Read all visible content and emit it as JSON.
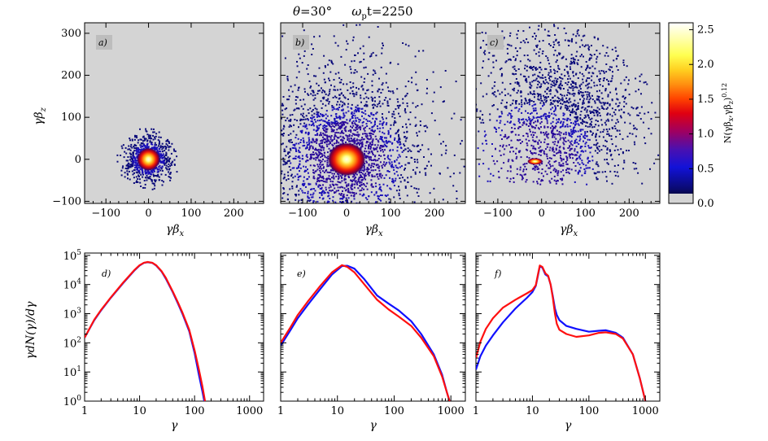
{
  "figure": {
    "title_theta": "θ=30°",
    "title_time": "ωpt=2250",
    "title_theta_sym": "θ",
    "title_theta_val": "=30°",
    "title_omega_sym": "ω",
    "title_omega_sub": "p",
    "title_time_val": "t=2250"
  },
  "colors": {
    "panel_bg": "#d4d4d4",
    "series_blue": "#1010ff",
    "series_red": "#ff1010",
    "scatter_dark": "#0b0b7a"
  },
  "chart_data": [
    {
      "id": "a",
      "type": "heatmap",
      "tag": "a)",
      "xlabel": "γβx",
      "ylabel": "γβz",
      "xlim": [
        -150,
        270
      ],
      "ylim": [
        -105,
        325
      ],
      "xticks": [
        -100,
        0,
        100,
        200
      ],
      "yticks": [
        -100,
        0,
        100,
        200,
        300
      ],
      "xtick_labels": [
        "−100",
        "0",
        "100",
        "200"
      ],
      "ytick_labels": [
        "−100",
        "0",
        "100",
        "200",
        "300"
      ],
      "core": {
        "x": 0,
        "z": 0,
        "sx": 17,
        "sz": 17
      },
      "halo": {
        "x": 0,
        "z": 0,
        "sx": 22,
        "sz": 22,
        "count": 900,
        "maxr": 75
      }
    },
    {
      "id": "b",
      "type": "heatmap",
      "tag": "b)",
      "xlabel": "γβx",
      "xlim": [
        -150,
        270
      ],
      "ylim": [
        -105,
        325
      ],
      "xticks": [
        -100,
        0,
        100,
        200
      ],
      "xtick_labels": [
        "−100",
        "0",
        "100",
        "200"
      ],
      "core": {
        "x": 0,
        "z": 0,
        "sx": 27,
        "sz": 25
      },
      "halo": {
        "x": -5,
        "z": 15,
        "sx": 75,
        "sz": 85,
        "count": 2600,
        "maxr": 330
      }
    },
    {
      "id": "c",
      "type": "heatmap",
      "tag": "c)",
      "xlabel": "γβx",
      "xlim": [
        -150,
        270
      ],
      "ylim": [
        -105,
        325
      ],
      "xticks": [
        -100,
        0,
        100,
        200
      ],
      "xtick_labels": [
        "−100",
        "0",
        "100",
        "200"
      ],
      "core": {
        "x": -15,
        "z": -5,
        "sx": 11,
        "sz": 5
      },
      "halo": {
        "x": 40,
        "z": 100,
        "sx": 80,
        "sz": 110,
        "count": 2200,
        "maxr": 330
      }
    },
    {
      "id": "colorbar",
      "type": "heatmap",
      "label": "N(γβx,γβz)0.12",
      "label_base": "N(γβ",
      "label_x": "x",
      "label_mid": ",γβ",
      "label_z": "z",
      "label_close": ")",
      "label_exp": "0.12",
      "range": [
        0.0,
        2.6
      ],
      "ticks": [
        0.0,
        0.5,
        1.0,
        1.5,
        2.0,
        2.5
      ],
      "tick_labels": [
        "0.0",
        "0.5",
        "1.0",
        "1.5",
        "2.0",
        "2.5"
      ]
    },
    {
      "id": "d",
      "type": "line",
      "tag": "d)",
      "xlabel": "γ",
      "ylabel": "γdN(γ)/dγ",
      "xscale": "log",
      "yscale": "log",
      "xlim": [
        1,
        1800
      ],
      "ylim": [
        1,
        120000
      ],
      "xticks": [
        1,
        10,
        100,
        1000
      ],
      "xtick_labels": [
        "1",
        "10",
        "100",
        "1000"
      ],
      "yticks": [
        1,
        10,
        100,
        1000,
        10000,
        100000
      ],
      "ytick_base": [
        "10",
        "10",
        "10",
        "10",
        "10",
        "10"
      ],
      "ytick_exp": [
        "0",
        "1",
        "2",
        "3",
        "4",
        "5"
      ],
      "series": [
        {
          "name": "blue",
          "x": [
            1,
            1.5,
            2,
            3,
            5,
            8,
            10,
            12,
            14,
            17,
            20,
            25,
            30,
            40,
            50,
            60,
            80,
            100,
            120,
            140,
            150
          ],
          "y": [
            150,
            600,
            1300,
            3500,
            11000,
            30000,
            45000,
            55000,
            58000,
            55000,
            45000,
            28000,
            16000,
            5500,
            2200,
            1000,
            250,
            45,
            8,
            2,
            1
          ]
        },
        {
          "name": "red",
          "x": [
            1,
            1.5,
            2,
            3,
            5,
            8,
            10,
            12,
            14,
            17,
            20,
            25,
            30,
            40,
            50,
            60,
            80,
            100,
            120,
            140,
            155
          ],
          "y": [
            150,
            620,
            1350,
            3600,
            11500,
            31000,
            46000,
            56000,
            59000,
            56000,
            46000,
            29000,
            17000,
            5800,
            2400,
            1100,
            280,
            55,
            12,
            3,
            1
          ]
        }
      ]
    },
    {
      "id": "e",
      "type": "line",
      "tag": "e)",
      "xlabel": "γ",
      "xscale": "log",
      "yscale": "log",
      "xlim": [
        1,
        1800
      ],
      "ylim": [
        1,
        120000
      ],
      "xticks": [
        1,
        10,
        100,
        1000
      ],
      "xtick_labels": [
        "1",
        "10",
        "100",
        "1000"
      ],
      "yticks": [
        1,
        10,
        100,
        1000,
        10000,
        100000
      ],
      "series": [
        {
          "name": "blue",
          "x": [
            1,
            1.5,
            2,
            3,
            5,
            8,
            12,
            15,
            20,
            30,
            50,
            80,
            120,
            200,
            300,
            500,
            700,
            850,
            950
          ],
          "y": [
            80,
            280,
            700,
            2000,
            7000,
            22000,
            43000,
            44000,
            35000,
            15000,
            4200,
            2200,
            1300,
            550,
            200,
            40,
            8,
            2,
            1
          ]
        },
        {
          "name": "red",
          "x": [
            1,
            1.5,
            2,
            3,
            5,
            8,
            12,
            15,
            20,
            30,
            50,
            80,
            120,
            200,
            300,
            500,
            700,
            850,
            950
          ],
          "y": [
            100,
            350,
            900,
            2600,
            9000,
            26000,
            46000,
            40000,
            26000,
            10000,
            3000,
            1400,
            800,
            380,
            150,
            35,
            7,
            2,
            1
          ]
        }
      ]
    },
    {
      "id": "f",
      "type": "line",
      "tag": "f)",
      "xlabel": "γ",
      "xscale": "log",
      "yscale": "log",
      "xlim": [
        1,
        1800
      ],
      "ylim": [
        1,
        120000
      ],
      "xticks": [
        1,
        10,
        100,
        1000
      ],
      "xtick_labels": [
        "1",
        "10",
        "100",
        "1000"
      ],
      "yticks": [
        1,
        10,
        100,
        1000,
        10000,
        100000
      ],
      "series": [
        {
          "name": "blue",
          "x": [
            1,
            1.2,
            1.5,
            2,
            3,
            5,
            8,
            10,
            11.5,
            12.5,
            13.5,
            15,
            17,
            19,
            21,
            23,
            25,
            27,
            30,
            40,
            60,
            100,
            150,
            200,
            300,
            400,
            600,
            800,
            1000
          ],
          "y": [
            12,
            35,
            80,
            180,
            500,
            1500,
            3500,
            5500,
            9000,
            20000,
            42000,
            38000,
            22000,
            19000,
            10000,
            4000,
            1500,
            900,
            600,
            380,
            300,
            240,
            260,
            270,
            220,
            150,
            40,
            6,
            1
          ]
        },
        {
          "name": "red",
          "x": [
            1,
            1.2,
            1.5,
            2,
            3,
            5,
            8,
            10,
            11.5,
            12.5,
            13.5,
            15,
            17,
            19,
            21,
            23,
            25,
            27,
            30,
            40,
            60,
            100,
            150,
            200,
            300,
            400,
            600,
            800,
            1000
          ],
          "y": [
            30,
            110,
            300,
            700,
            1600,
            3000,
            5000,
            6500,
            9500,
            22000,
            45000,
            40000,
            24000,
            20000,
            10000,
            3500,
            1000,
            450,
            280,
            200,
            160,
            180,
            220,
            230,
            200,
            140,
            40,
            6,
            1
          ]
        }
      ]
    }
  ]
}
